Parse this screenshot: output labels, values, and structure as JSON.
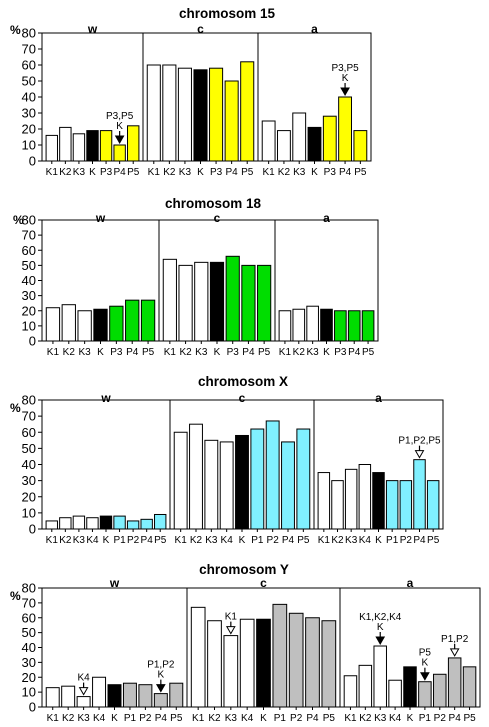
{
  "y_unit": "%",
  "colors": {
    "control": "#ffffff",
    "k": "#000000",
    "chrom15": "#ffff00",
    "chrom18": "#00dd00",
    "chromX": "#80f0ff",
    "chromY": "#bfbfbf",
    "stroke": "#000000"
  },
  "chart_data": [
    {
      "type": "bar",
      "title": "chromosom 15",
      "ylim": [
        0,
        80
      ],
      "yticks": [
        0,
        10,
        20,
        30,
        40,
        50,
        60,
        70,
        80
      ],
      "grid": false,
      "groups": [
        {
          "label": "w",
          "categories": [
            "K1",
            "K2",
            "K3",
            "K",
            "P3",
            "P4",
            "P5"
          ],
          "values": [
            16,
            21,
            17,
            19,
            19,
            10,
            22
          ],
          "kinds": [
            "c",
            "c",
            "c",
            "k",
            "p",
            "p",
            "p"
          ],
          "annotations": [
            {
              "bar": 5,
              "lines": [
                "P3,P5",
                "K"
              ],
              "arrow": "filled"
            }
          ]
        },
        {
          "label": "c",
          "categories": [
            "K1",
            "K2",
            "K3",
            "K",
            "P3",
            "P4",
            "P5"
          ],
          "values": [
            60,
            60,
            58,
            57,
            58,
            50,
            62
          ],
          "kinds": [
            "c",
            "c",
            "c",
            "k",
            "p",
            "p",
            "p"
          ],
          "annotations": []
        },
        {
          "label": "a",
          "categories": [
            "K1",
            "K2",
            "K3",
            "K",
            "P3",
            "P4",
            "P5"
          ],
          "values": [
            25,
            19,
            30,
            21,
            28,
            40,
            19
          ],
          "kinds": [
            "c",
            "c",
            "c",
            "k",
            "p",
            "p",
            "p"
          ],
          "annotations": [
            {
              "bar": 5,
              "lines": [
                "P3,P5",
                "K"
              ],
              "arrow": "filled"
            }
          ]
        }
      ]
    },
    {
      "type": "bar",
      "title": "chromosom 18",
      "ylim": [
        0,
        80
      ],
      "yticks": [
        0,
        10,
        20,
        30,
        40,
        50,
        60,
        70,
        80
      ],
      "grid": false,
      "groups": [
        {
          "label": "w",
          "categories": [
            "K1",
            "K2",
            "K3",
            "K",
            "P3",
            "P4",
            "P5"
          ],
          "values": [
            22,
            24,
            20,
            21,
            23,
            27,
            27
          ],
          "kinds": [
            "c",
            "c",
            "c",
            "k",
            "p",
            "p",
            "p"
          ],
          "annotations": []
        },
        {
          "label": "c",
          "categories": [
            "K1",
            "K2",
            "K3",
            "K",
            "P3",
            "P4",
            "P5"
          ],
          "values": [
            54,
            50,
            52,
            52,
            56,
            50,
            50
          ],
          "kinds": [
            "c",
            "c",
            "c",
            "k",
            "p",
            "p",
            "p"
          ],
          "annotations": []
        },
        {
          "label": "a",
          "categories": [
            "K1",
            "K2",
            "K3",
            "K",
            "P3",
            "P4",
            "P5"
          ],
          "values": [
            20,
            21,
            23,
            21,
            20,
            20,
            20
          ],
          "kinds": [
            "c",
            "c",
            "c",
            "k",
            "p",
            "p",
            "p"
          ],
          "annotations": []
        }
      ]
    },
    {
      "type": "bar",
      "title": "chromosom X",
      "ylim": [
        0,
        80
      ],
      "yticks": [
        0,
        10,
        20,
        30,
        40,
        50,
        60,
        70,
        80
      ],
      "grid": false,
      "groups": [
        {
          "label": "w",
          "categories": [
            "K1",
            "K2",
            "K3",
            "K4",
            "K",
            "P1",
            "P2",
            "P4",
            "P5"
          ],
          "values": [
            5,
            7,
            8,
            7,
            8,
            8,
            5,
            6,
            9
          ],
          "kinds": [
            "c",
            "c",
            "c",
            "c",
            "k",
            "p",
            "p",
            "p",
            "p"
          ],
          "annotations": []
        },
        {
          "label": "c",
          "categories": [
            "K1",
            "K2",
            "K3",
            "K4",
            "K",
            "P1",
            "P2",
            "P4",
            "P5"
          ],
          "values": [
            60,
            65,
            55,
            54,
            58,
            62,
            67,
            54,
            62
          ],
          "kinds": [
            "c",
            "c",
            "c",
            "c",
            "k",
            "p",
            "p",
            "p",
            "p"
          ],
          "annotations": []
        },
        {
          "label": "a",
          "categories": [
            "K1",
            "K2",
            "K3",
            "K4",
            "K",
            "P1",
            "P2",
            "P4",
            "P5"
          ],
          "values": [
            35,
            30,
            37,
            40,
            35,
            30,
            30,
            43,
            30
          ],
          "kinds": [
            "c",
            "c",
            "c",
            "c",
            "k",
            "p",
            "p",
            "p",
            "p"
          ],
          "annotations": [
            {
              "bar": 7,
              "lines": [
                "P1,P2,P5"
              ],
              "arrow": "open"
            }
          ]
        }
      ]
    },
    {
      "type": "bar",
      "title": "chromosom  Y",
      "ylim": [
        0,
        80
      ],
      "yticks": [
        0,
        10,
        20,
        30,
        40,
        50,
        60,
        70,
        80
      ],
      "grid": false,
      "groups": [
        {
          "label": "w",
          "categories": [
            "K1",
            "K2",
            "K3",
            "K4",
            "K",
            "P1",
            "P2",
            "P4",
            "P5"
          ],
          "values": [
            13,
            14,
            7,
            20,
            15,
            16,
            15,
            9,
            16
          ],
          "kinds": [
            "c",
            "c",
            "c",
            "c",
            "k",
            "p",
            "p",
            "p",
            "p"
          ],
          "annotations": [
            {
              "bar": 2,
              "lines": [
                "K4"
              ],
              "arrow": "open"
            },
            {
              "bar": 7,
              "lines": [
                "P1,P2",
                "K"
              ],
              "arrow": "filled"
            }
          ]
        },
        {
          "label": "c",
          "categories": [
            "K1",
            "K2",
            "K3",
            "K4",
            "K",
            "P1",
            "P2",
            "P4",
            "P5"
          ],
          "values": [
            67,
            58,
            48,
            59,
            59,
            69,
            63,
            60,
            58
          ],
          "kinds": [
            "c",
            "c",
            "c",
            "c",
            "k",
            "p",
            "p",
            "p",
            "p"
          ],
          "annotations": [
            {
              "bar": 2,
              "lines": [
                "K1"
              ],
              "arrow": "open"
            }
          ]
        },
        {
          "label": "a",
          "categories": [
            "K1",
            "K2",
            "K3",
            "K4",
            "K",
            "P1",
            "P2",
            "P4",
            "P5"
          ],
          "values": [
            21,
            28,
            41,
            18,
            27,
            17,
            22,
            33,
            27
          ],
          "kinds": [
            "c",
            "c",
            "c",
            "c",
            "k",
            "p",
            "p",
            "p",
            "p"
          ],
          "annotations": [
            {
              "bar": 2,
              "lines": [
                "K1,K2,K4",
                "K"
              ],
              "arrow": "filled"
            },
            {
              "bar": 5,
              "lines": [
                "P5",
                "K"
              ],
              "arrow": "filled"
            },
            {
              "bar": 7,
              "lines": [
                "P1,P2"
              ],
              "arrow": "open"
            }
          ]
        }
      ]
    }
  ]
}
